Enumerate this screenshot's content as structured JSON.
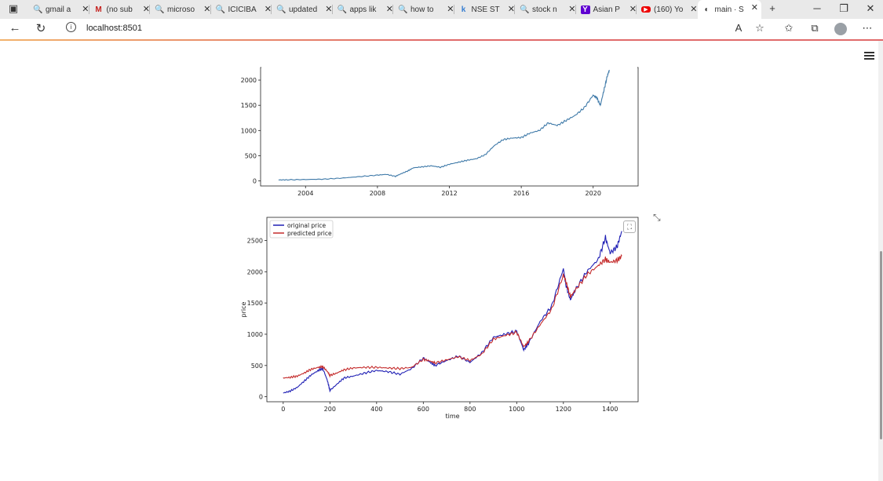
{
  "browser": {
    "tabs": [
      {
        "title": "gmail a",
        "icon": "search-icon",
        "glyph": "🔍"
      },
      {
        "title": "(no sub",
        "icon": "gmail-icon",
        "glyph": "M"
      },
      {
        "title": "microso",
        "icon": "search-icon",
        "glyph": "🔍"
      },
      {
        "title": "ICICIBA",
        "icon": "search-icon",
        "glyph": "🔍"
      },
      {
        "title": "updated",
        "icon": "search-icon",
        "glyph": "🔍"
      },
      {
        "title": "apps lik",
        "icon": "search-icon",
        "glyph": "🔍"
      },
      {
        "title": "how to",
        "icon": "search-icon",
        "glyph": "🔍"
      },
      {
        "title": "NSE ST",
        "icon": "kite-icon",
        "glyph": "k"
      },
      {
        "title": "stock n",
        "icon": "search-icon",
        "glyph": "🔍"
      },
      {
        "title": "Asian P",
        "icon": "yahoo-icon",
        "glyph": "Y"
      },
      {
        "title": "(160) Yo",
        "icon": "youtube-icon",
        "glyph": "▶"
      },
      {
        "title": "main · S",
        "icon": "streamlit-icon",
        "glyph": "◐"
      }
    ],
    "url": "localhost:8501"
  },
  "chart_data": [
    {
      "type": "line",
      "title": "",
      "xlabel": "",
      "ylabel": "",
      "xlim": [
        2001.5,
        2022.5
      ],
      "ylim": [
        -100,
        2250
      ],
      "xticks": [
        "2004",
        "2008",
        "2012",
        "2016",
        "2020"
      ],
      "yticks": [
        "0",
        "500",
        "1000",
        "1500",
        "2000"
      ],
      "color": "#3e79a8",
      "series": [
        {
          "x": [
            2002.5,
            2003,
            2004,
            2005,
            2006,
            2007,
            2008,
            2008.5,
            2009,
            2009.3,
            2009.7,
            2010,
            2010.5,
            2011,
            2011.5,
            2012,
            2012.5,
            2013,
            2013.5,
            2014,
            2014.5,
            2015,
            2015.5,
            2016,
            2016.5,
            2017,
            2017.5,
            2018,
            2018.5,
            2019,
            2019.5,
            2020,
            2020.2,
            2020.4,
            2020.6,
            2020.8,
            2020.9
          ],
          "y": [
            20,
            22,
            28,
            35,
            55,
            85,
            115,
            130,
            90,
            140,
            200,
            260,
            280,
            300,
            270,
            330,
            370,
            410,
            440,
            520,
            700,
            820,
            850,
            860,
            950,
            1000,
            1150,
            1100,
            1200,
            1300,
            1450,
            1700,
            1650,
            1500,
            1800,
            2100,
            2200
          ]
        }
      ]
    },
    {
      "type": "line",
      "title": "",
      "xlabel": "time",
      "ylabel": "price",
      "xlim": [
        -70,
        1520
      ],
      "ylim": [
        -80,
        2870
      ],
      "xticks": [
        "0",
        "200",
        "400",
        "600",
        "800",
        "1000",
        "1200",
        "1400"
      ],
      "yticks": [
        "0",
        "500",
        "1000",
        "1500",
        "2000",
        "2500"
      ],
      "legend": "top-left",
      "series": [
        {
          "name": "original price",
          "color": "#1f1fb4",
          "x": [
            0,
            30,
            60,
            90,
            120,
            150,
            170,
            190,
            200,
            230,
            260,
            300,
            350,
            400,
            450,
            500,
            550,
            600,
            630,
            650,
            700,
            750,
            800,
            850,
            900,
            950,
            1000,
            1030,
            1050,
            1100,
            1150,
            1200,
            1210,
            1230,
            1250,
            1300,
            1350,
            1380,
            1400,
            1430,
            1450
          ],
          "y": [
            60,
            90,
            150,
            250,
            350,
            420,
            450,
            250,
            100,
            200,
            300,
            330,
            380,
            420,
            400,
            360,
            450,
            620,
            550,
            500,
            580,
            650,
            550,
            700,
            950,
            1000,
            1050,
            750,
            850,
            1200,
            1450,
            2050,
            1800,
            1550,
            1700,
            2000,
            2200,
            2550,
            2300,
            2400,
            2650
          ]
        },
        {
          "name": "predicted price",
          "color": "#c42b2b",
          "x": [
            0,
            30,
            60,
            90,
            120,
            150,
            170,
            190,
            200,
            230,
            260,
            300,
            350,
            400,
            450,
            500,
            550,
            600,
            630,
            650,
            700,
            750,
            800,
            850,
            900,
            950,
            1000,
            1030,
            1050,
            1100,
            1150,
            1200,
            1210,
            1230,
            1250,
            1300,
            1350,
            1380,
            1400,
            1430,
            1450
          ],
          "y": [
            300,
            310,
            330,
            380,
            440,
            470,
            480,
            400,
            340,
            380,
            430,
            460,
            470,
            470,
            460,
            450,
            470,
            600,
            570,
            540,
            590,
            640,
            580,
            680,
            920,
            980,
            1030,
            800,
            880,
            1150,
            1400,
            1950,
            1850,
            1600,
            1700,
            1950,
            2100,
            2200,
            2150,
            2180,
            2250
          ]
        }
      ]
    }
  ]
}
